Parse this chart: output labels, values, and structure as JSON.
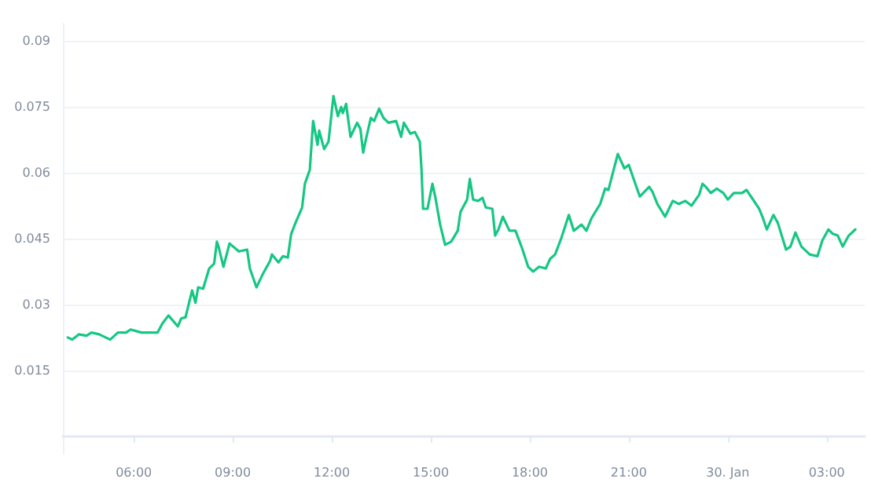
{
  "chart_data": {
    "type": "line",
    "x": [
      "--01-29T04:00",
      "--01-29T04:08",
      "--01-29T04:20",
      "--01-29T04:34",
      "--01-29T04:43",
      "--01-29T04:57",
      "--01-29T05:17",
      "--01-29T05:31",
      "--01-29T05:46",
      "--01-29T05:54",
      "--01-29T06:14",
      "--01-29T06:29",
      "--01-29T06:43",
      "--01-29T06:52",
      "--01-29T07:03",
      "--01-29T07:20",
      "--01-29T07:26",
      "--01-29T07:34",
      "--01-29T07:46",
      "--01-29T07:52",
      "--01-29T07:57",
      "--01-29T08:06",
      "--01-29T08:17",
      "--01-29T08:26",
      "--01-29T08:31",
      "--01-29T08:34",
      "--01-29T08:43",
      "--01-29T08:54",
      "--01-29T09:11",
      "--01-29T09:26",
      "--01-29T09:31",
      "--01-29T09:43",
      "--01-29T09:54",
      "--01-29T10:08",
      "--01-29T10:11",
      "--01-29T10:23",
      "--01-29T10:31",
      "--01-29T10:40",
      "--01-29T10:46",
      "--01-29T10:54",
      "--01-29T11:06",
      "--01-29T11:11",
      "--01-29T11:20",
      "--01-29T11:26",
      "--01-29T11:34",
      "--01-29T11:37",
      "--01-29T11:46",
      "--01-29T11:54",
      "--01-29T12:03",
      "--01-29T12:11",
      "--01-29T12:17",
      "--01-29T12:20",
      "--01-29T12:26",
      "--01-29T12:34",
      "--01-29T12:46",
      "--01-29T12:52",
      "--01-29T12:57",
      "--01-29T13:03",
      "--01-29T13:11",
      "--01-29T13:17",
      "--01-29T13:26",
      "--01-29T13:34",
      "--01-29T13:43",
      "--01-29T13:57",
      "--01-29T14:06",
      "--01-29T14:11",
      "--01-29T14:23",
      "--01-29T14:31",
      "--01-29T14:40",
      "--01-29T14:43",
      "--01-29T14:46",
      "--01-29T14:54",
      "--01-29T15:03",
      "--01-29T15:08",
      "--01-29T15:17",
      "--01-29T15:26",
      "--01-29T15:37",
      "--01-29T15:49",
      "--01-29T15:54",
      "--01-29T16:06",
      "--01-29T16:11",
      "--01-29T16:17",
      "--01-29T16:26",
      "--01-29T16:34",
      "--01-29T16:40",
      "--01-29T16:52",
      "--01-29T16:57",
      "--01-29T17:03",
      "--01-29T17:11",
      "--01-29T17:23",
      "--01-29T17:34",
      "--01-29T17:46",
      "--01-29T17:57",
      "--01-29T18:06",
      "--01-29T18:17",
      "--01-29T18:29",
      "--01-29T18:37",
      "--01-29T18:46",
      "--01-29T18:57",
      "--01-29T19:11",
      "--01-29T19:20",
      "--01-29T19:34",
      "--01-29T19:43",
      "--01-29T19:52",
      "--01-29T20:08",
      "--01-29T20:17",
      "--01-29T20:23",
      "--01-29T20:40",
      "--01-29T20:52",
      "--01-29T21:00",
      "--01-29T21:08",
      "--01-29T21:20",
      "--01-29T21:37",
      "--01-29T21:43",
      "--01-29T21:52",
      "--01-29T22:06",
      "--01-29T22:20",
      "--01-29T22:31",
      "--01-29T22:43",
      "--01-29T22:54",
      "--01-29T23:08",
      "--01-29T23:14",
      "--01-29T23:20",
      "--01-29T23:29",
      "--01-29T23:40",
      "--01-29T23:52",
      "--01-30T00:00",
      "--01-30T00:11",
      "--01-30T00:26",
      "--01-30T00:34",
      "--01-30T00:46",
      "--01-30T00:57",
      "--01-30T01:03",
      "--01-30T01:11",
      "--01-30T01:23",
      "--01-30T01:31",
      "--01-30T01:46",
      "--01-30T01:54",
      "--01-30T02:03",
      "--01-30T02:14",
      "--01-30T02:29",
      "--01-30T02:43",
      "--01-30T02:52",
      "--01-30T03:03",
      "--01-30T03:11",
      "--01-30T03:20",
      "--01-30T03:29",
      "--01-30T03:40",
      "--01-30T03:52"
    ],
    "series": [
      {
        "color": "#16c784",
        "values": [
          0.0225,
          0.022,
          0.0232,
          0.0229,
          0.0236,
          0.0232,
          0.022,
          0.0236,
          0.0236,
          0.0243,
          0.0236,
          0.0236,
          0.0236,
          0.0257,
          0.0275,
          0.025,
          0.0268,
          0.0271,
          0.0332,
          0.0304,
          0.0339,
          0.0336,
          0.0382,
          0.0393,
          0.0443,
          0.0432,
          0.0386,
          0.0439,
          0.0421,
          0.0425,
          0.0382,
          0.0339,
          0.0368,
          0.04,
          0.0414,
          0.0396,
          0.041,
          0.0407,
          0.046,
          0.0486,
          0.0521,
          0.0575,
          0.0607,
          0.0718,
          0.0664,
          0.0696,
          0.0654,
          0.0671,
          0.0775,
          0.0729,
          0.075,
          0.0736,
          0.0757,
          0.0682,
          0.0714,
          0.07,
          0.0646,
          0.0682,
          0.0725,
          0.0718,
          0.0746,
          0.0725,
          0.0714,
          0.0718,
          0.0682,
          0.0714,
          0.0689,
          0.0693,
          0.0671,
          0.061,
          0.0518,
          0.0518,
          0.0575,
          0.0546,
          0.0482,
          0.0436,
          0.0443,
          0.0468,
          0.0511,
          0.0539,
          0.0586,
          0.0539,
          0.0536,
          0.0543,
          0.0521,
          0.0518,
          0.0457,
          0.0471,
          0.05,
          0.0468,
          0.0468,
          0.0428,
          0.0386,
          0.0375,
          0.0386,
          0.0382,
          0.0404,
          0.0414,
          0.045,
          0.0504,
          0.0468,
          0.0482,
          0.0468,
          0.0496,
          0.0529,
          0.0564,
          0.0561,
          0.0643,
          0.061,
          0.0618,
          0.0589,
          0.0546,
          0.0568,
          0.0557,
          0.0529,
          0.05,
          0.0536,
          0.0529,
          0.0536,
          0.0525,
          0.055,
          0.0575,
          0.0568,
          0.0554,
          0.0564,
          0.0554,
          0.0539,
          0.0554,
          0.0554,
          0.0561,
          0.0539,
          0.0518,
          0.05,
          0.0471,
          0.0504,
          0.0486,
          0.0425,
          0.0432,
          0.0464,
          0.0432,
          0.0414,
          0.041,
          0.0446,
          0.0471,
          0.0461,
          0.0457,
          0.0432,
          0.0457,
          0.0471
        ]
      }
    ],
    "xlim": [
      "--01-29T03:51",
      "--01-30T04:09"
    ],
    "xticks": [
      {
        "value": "--01-29T06:00",
        "label": "06:00"
      },
      {
        "value": "--01-29T09:00",
        "label": "09:00"
      },
      {
        "value": "--01-29T12:00",
        "label": "12:00"
      },
      {
        "value": "--01-29T15:00",
        "label": "15:00"
      },
      {
        "value": "--01-29T18:00",
        "label": "18:00"
      },
      {
        "value": "--01-29T21:00",
        "label": "21:00"
      },
      {
        "value": "--01-30T00:00",
        "label": "30. Jan"
      },
      {
        "value": "--01-30T03:00",
        "label": "03:00"
      }
    ],
    "ylim": [
      -0.004,
      0.094
    ],
    "yticks": [
      0.015,
      0.03,
      0.045,
      0.06,
      0.075,
      0.09
    ],
    "grid": "y",
    "marker": "none",
    "line_style": "solid"
  }
}
